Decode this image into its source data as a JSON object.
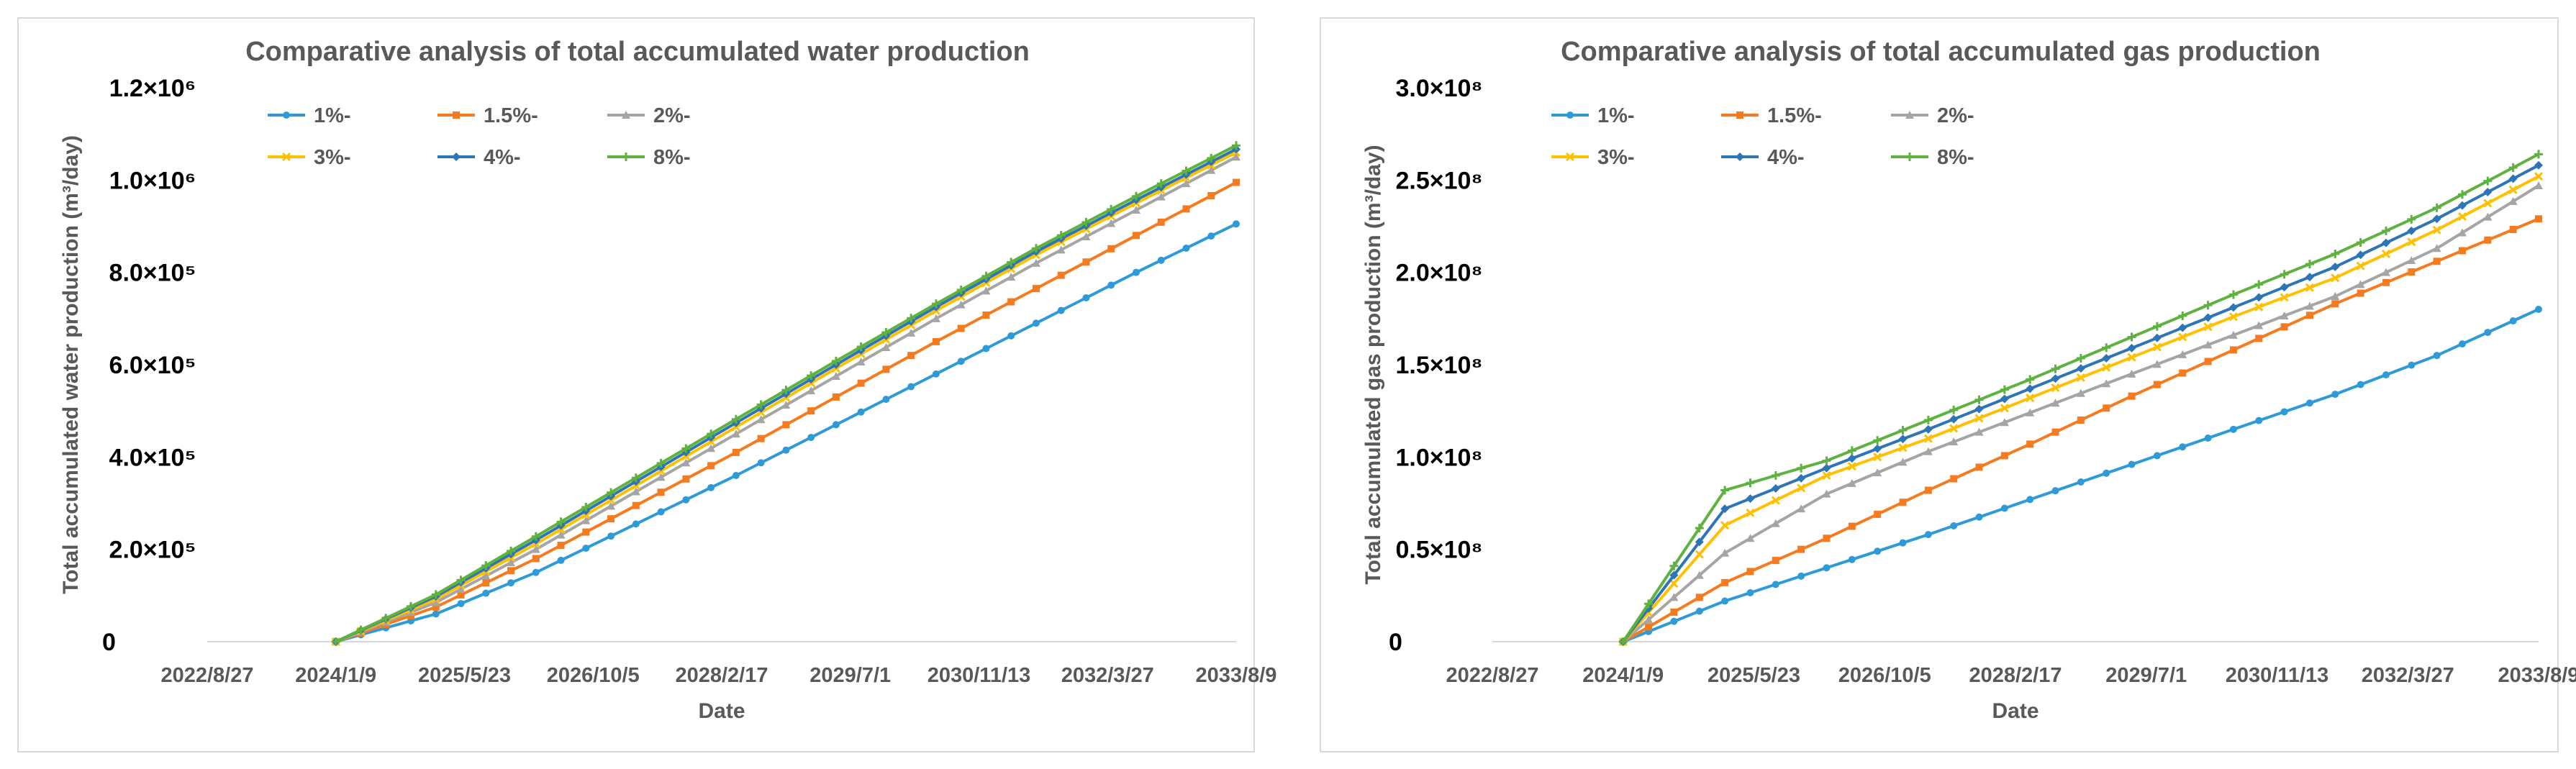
{
  "chart_data": [
    {
      "id": "water",
      "type": "line",
      "title": "Comparative analysis of total accumulated water production",
      "xlabel": "Date",
      "ylabel": "Total accumulated water production (m³/day)",
      "ylim": [
        0,
        1200000
      ],
      "ytick_values": [
        0,
        200000,
        400000,
        600000,
        800000,
        1000000,
        1200000
      ],
      "ytick_labels": [
        "0",
        "2.0×10⁵",
        "4.0×10⁵",
        "6.0×10⁵",
        "8.0×10⁵",
        "1.0×10⁶",
        "1.2×10⁶"
      ],
      "xticks": [
        "2022/8/27",
        "2024/1/9",
        "2025/5/23",
        "2026/10/5",
        "2028/2/17",
        "2029/7/1",
        "2030/11/13",
        "2032/3/27",
        "2033/8/9"
      ],
      "x_start": "2024/1/9",
      "x_end": "2033/8/9",
      "legend_columns": 3,
      "series": [
        {
          "name": "1%-",
          "color": "#2e9bd6",
          "marker": "circle",
          "values": [
            0,
            60000,
            150000,
            255000,
            360000,
            470000,
            580000,
            690000,
            800000,
            905000
          ]
        },
        {
          "name": "1.5%-",
          "color": "#f47b20",
          "marker": "square",
          "values": [
            0,
            75000,
            180000,
            295000,
            410000,
            530000,
            650000,
            765000,
            880000,
            995000
          ]
        },
        {
          "name": "2%-",
          "color": "#a5a5a5",
          "marker": "triangle",
          "values": [
            0,
            85000,
            200000,
            325000,
            450000,
            575000,
            700000,
            820000,
            935000,
            1050000
          ]
        },
        {
          "name": "3%-",
          "color": "#ffc000",
          "marker": "x",
          "values": [
            0,
            92000,
            212000,
            338000,
            465000,
            592000,
            717000,
            838000,
            950000,
            1060000
          ]
        },
        {
          "name": "4%-",
          "color": "#2e75b6",
          "marker": "diamond",
          "values": [
            0,
            98000,
            220000,
            347000,
            474000,
            600000,
            725000,
            845000,
            957000,
            1067000
          ]
        },
        {
          "name": "8%-",
          "color": "#5fb140",
          "marker": "plus",
          "values": [
            0,
            102000,
            228000,
            355000,
            482000,
            608000,
            732000,
            852000,
            965000,
            1075000
          ]
        }
      ]
    },
    {
      "id": "gas",
      "type": "line",
      "title": "Comparative analysis of total accumulated gas production",
      "xlabel": "Date",
      "ylabel": "Total accumulated gas production (m³/day)",
      "ylim": [
        0,
        300000000
      ],
      "ytick_values": [
        0,
        50000000,
        100000000,
        150000000,
        200000000,
        250000000,
        300000000
      ],
      "ytick_labels": [
        "0",
        "0.5×10⁸",
        "1.0×10⁸",
        "1.5×10⁸",
        "2.0×10⁸",
        "2.5×10⁸",
        "3.0×10⁸"
      ],
      "xticks": [
        "2022/8/27",
        "2024/1/9",
        "2025/5/23",
        "2026/10/5",
        "2028/2/17",
        "2029/7/1",
        "2030/11/13",
        "2032/3/27",
        "2033/8/9"
      ],
      "x_start": "2024/1/9",
      "x_end": "2033/8/9",
      "legend_columns": 3,
      "series": [
        {
          "name": "1%-",
          "color": "#2e9bd6",
          "marker": "circle",
          "values": [
            0,
            22000000,
            40000000,
            58000000,
            77000000,
            96000000,
            115000000,
            134000000,
            155000000,
            180000000
          ]
        },
        {
          "name": "1.5%-",
          "color": "#f47b20",
          "marker": "square",
          "values": [
            0,
            32000000,
            56000000,
            82000000,
            107000000,
            133000000,
            158000000,
            183000000,
            206000000,
            229000000
          ]
        },
        {
          "name": "2%-",
          "color": "#a5a5a5",
          "marker": "triangle",
          "values": [
            0,
            48000000,
            80000000,
            103000000,
            124000000,
            145000000,
            166000000,
            187000000,
            213000000,
            247000000
          ]
        },
        {
          "name": "3%-",
          "color": "#ffc000",
          "marker": "x",
          "values": [
            0,
            63000000,
            90000000,
            110000000,
            132000000,
            154000000,
            176000000,
            197000000,
            223000000,
            252000000
          ]
        },
        {
          "name": "4%-",
          "color": "#2e75b6",
          "marker": "diamond",
          "values": [
            0,
            72000000,
            94000000,
            115000000,
            137000000,
            159000000,
            181000000,
            203000000,
            229000000,
            258000000
          ]
        },
        {
          "name": "8%-",
          "color": "#5fb140",
          "marker": "plus",
          "values": [
            0,
            82000000,
            98000000,
            120000000,
            142000000,
            165000000,
            188000000,
            210000000,
            235000000,
            264000000
          ]
        }
      ]
    }
  ]
}
